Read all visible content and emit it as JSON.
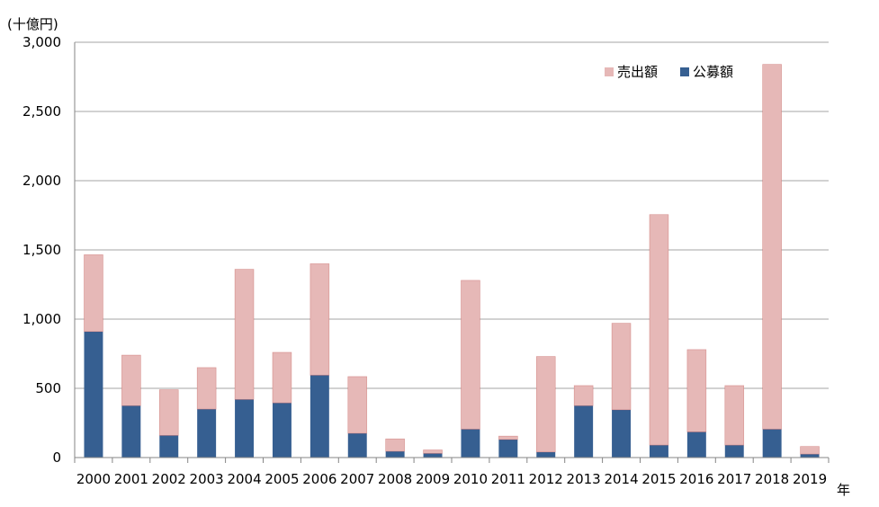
{
  "chart_data": {
    "type": "bar",
    "stacked": true,
    "y_unit_label": "(十億円)",
    "x_unit_label": "年",
    "ylim": [
      0,
      3000
    ],
    "yticks": [
      0,
      500,
      1000,
      1500,
      2000,
      2500,
      3000
    ],
    "ytick_labels": [
      "0",
      "500",
      "1,000",
      "1,500",
      "2,000",
      "2,500",
      "3,000"
    ],
    "grid": true,
    "legend_position": "top-right",
    "categories": [
      "2000",
      "2001",
      "2002",
      "2003",
      "2004",
      "2005",
      "2006",
      "2007",
      "2008",
      "2009",
      "2010",
      "2011",
      "2012",
      "2013",
      "2014",
      "2015",
      "2016",
      "2017",
      "2018",
      "2019"
    ],
    "series": [
      {
        "name": "公募額",
        "color": "#365f91",
        "values": [
          910,
          375,
          160,
          350,
          420,
          395,
          595,
          175,
          45,
          30,
          205,
          130,
          40,
          375,
          345,
          90,
          185,
          90,
          205,
          25
        ]
      },
      {
        "name": "売出額",
        "color": "#e6b8b7",
        "values": [
          555,
          365,
          330,
          300,
          940,
          365,
          805,
          410,
          90,
          25,
          1075,
          25,
          690,
          145,
          625,
          1665,
          595,
          430,
          2635,
          55
        ]
      }
    ],
    "legend_order": [
      "売出額",
      "公募額"
    ]
  }
}
